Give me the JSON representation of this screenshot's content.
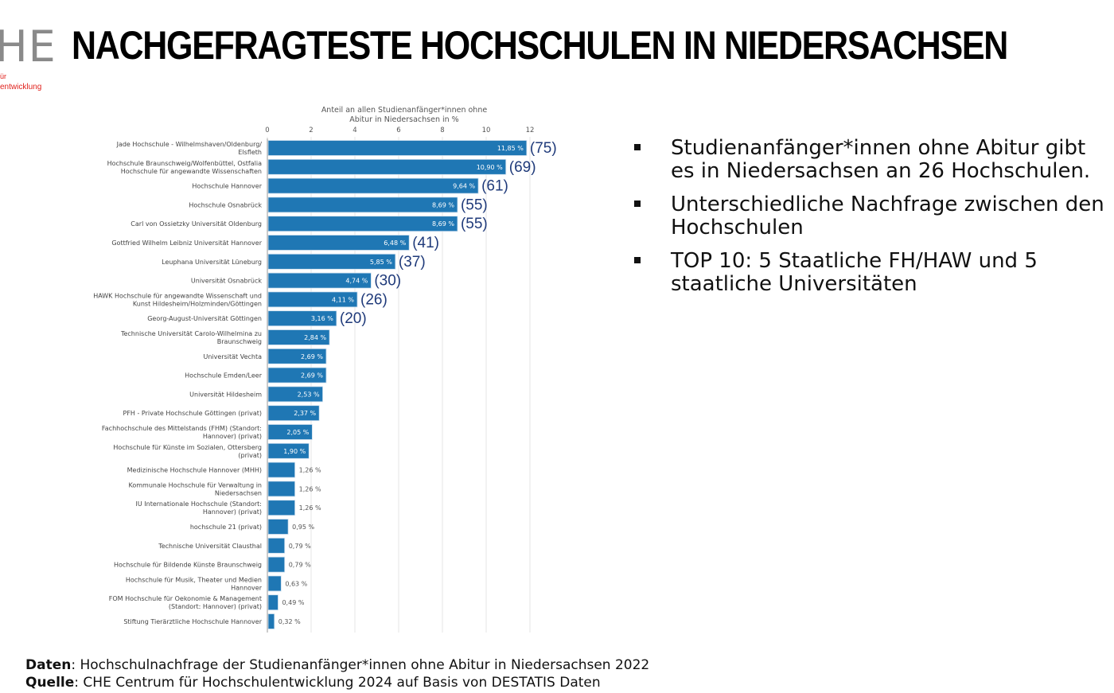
{
  "logo": {
    "text": "HE",
    "sub1": "ür",
    "sub2": "entwicklung"
  },
  "title": "NACHGEFRAGTESTE HOCHSCHULEN IN NIEDERSACHSEN",
  "bullets": [
    "Studienanfänger*innen ohne Abitur gibt es in Niedersachsen an 26 Hochschulen.",
    "Unterschiedliche Nachfrage zwischen den Hochschulen",
    "TOP 10: 5 Staatliche FH/HAW und 5 staatliche Universitäten"
  ],
  "footer": {
    "data_label": "Daten",
    "data_text": ": Hochschulnachfrage der Studienanfänger*innen ohne Abitur in Niedersachsen 2022",
    "source_label": "Quelle",
    "source_text": ": CHE Centrum für Hochschulentwicklung 2024 auf Basis von DESTATIS Daten"
  },
  "chart_data": {
    "type": "bar",
    "orientation": "horizontal",
    "xlabel": "Anteil an allen Studienanfänger*innen ohne Abitur in Niedersachsen in %",
    "xlim": [
      0,
      12
    ],
    "xticks": [
      "0",
      "2",
      "4",
      "6",
      "8",
      "10",
      "12"
    ],
    "xaxis_position": "top",
    "grid": true,
    "bar_color": "#1f77b4",
    "annotation_color": "#1f3a7a",
    "categories": [
      "Jade Hochschule - Wilhelmshaven/Oldenburg/ Elsfleth",
      "Hochschule Braunschweig/Wolfenbüttel, Ostfalia Hochschule für angewandte Wissenschaften",
      "Hochschule Hannover",
      "Hochschule Osnabrück",
      "Carl von Ossietzky Universität Oldenburg",
      "Gottfried Wilhelm Leibniz Universität Hannover",
      "Leuphana Universität Lüneburg",
      "Universität Osnabrück",
      "HAWK Hochschule für angewandte Wissenschaft und Kunst Hildesheim/Holzminden/Göttingen",
      "Georg-August-Universität Göttingen",
      "Technische Universität Carolo-Wilhelmina zu Braunschweig",
      "Universität Vechta",
      "Hochschule Emden/Leer",
      "Universität Hildesheim",
      "PFH - Private Hochschule Göttingen (privat)",
      "Fachhochschule des Mittelstands (FHM) (Standort: Hannover) (privat)",
      "Hochschule für Künste im Sozialen, Ottersberg (privat)",
      "Medizinische Hochschule Hannover (MHH)",
      "Kommunale Hochschule für Verwaltung in Niedersachsen",
      "IU Internationale Hochschule (Standort: Hannover) (privat)",
      "hochschule 21 (privat)",
      "Technische Universität Clausthal",
      "Hochschule für Bildende Künste Braunschweig",
      "Hochschule für Musik, Theater und Medien Hannover",
      "FOM Hochschule für Oekonomie & Management (Standort: Hannover) (privat)",
      "Stiftung Tierärztliche Hochschule Hannover"
    ],
    "values": [
      11.85,
      10.9,
      9.64,
      8.69,
      8.69,
      6.48,
      5.85,
      4.74,
      4.11,
      3.16,
      2.84,
      2.69,
      2.69,
      2.53,
      2.37,
      2.05,
      1.9,
      1.26,
      1.26,
      1.26,
      0.95,
      0.79,
      0.79,
      0.63,
      0.49,
      0.32
    ],
    "data_labels": [
      "11,85 %",
      "10,90 %",
      "9,64 %",
      "8,69 %",
      "8,69 %",
      "6,48 %",
      "5,85 %",
      "4,74 %",
      "4,11 %",
      "3,16 %",
      "2,84 %",
      "2,69 %",
      "2,69 %",
      "2,53 %",
      "2,37 %",
      "2,05 %",
      "1,90 %",
      "1,26 %",
      "1,26 %",
      "1,26 %",
      "0,95 %",
      "0,79 %",
      "0,79 %",
      "0,63 %",
      "0,49 %",
      "0,32 %"
    ],
    "annotations": [
      "(75)",
      "(69)",
      "(61)",
      "(55)",
      "(55)",
      "(41)",
      "(37)",
      "(30)",
      "(26)",
      "(20)",
      "",
      "",
      "",
      "",
      "",
      "",
      "",
      "",
      "",
      "",
      "",
      "",
      "",
      "",
      "",
      ""
    ]
  }
}
